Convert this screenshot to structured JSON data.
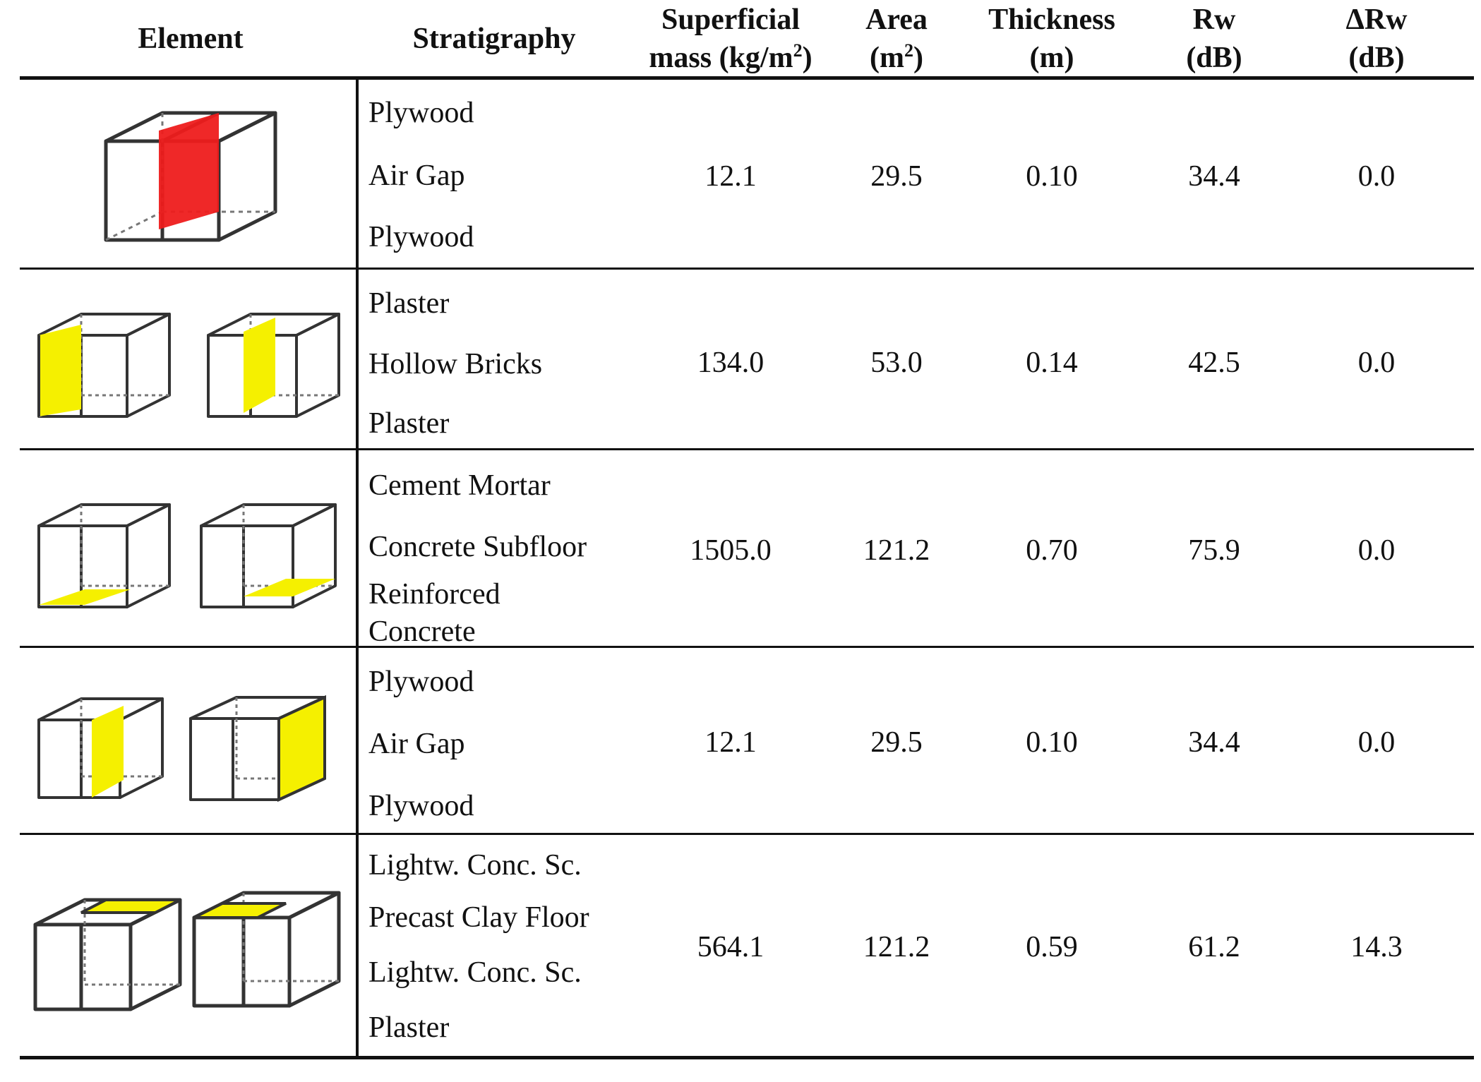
{
  "table": {
    "headers": {
      "element": "Element",
      "stratigraphy": "Stratigraphy",
      "mass_line1": "Superficial",
      "mass_line2": "mass (kg/m",
      "mass_sup": "2",
      "mass_close": ")",
      "area_line1": "Area",
      "area_line2": "(m",
      "area_sup": "2",
      "area_close": ")",
      "thickness_line1": "Thickness",
      "thickness_line2": "(m)",
      "rw_line1": "Rw",
      "rw_line2": "(dB)",
      "drw_line1": "ΔRw",
      "drw_line2": "(dB)"
    },
    "rows": [
      {
        "element_icon": "box-red-partition-icon",
        "layers": [
          "Plywood",
          "Air Gap",
          "Plywood"
        ],
        "mass": "12.1",
        "area": "29.5",
        "thickness": "0.10",
        "rw": "34.4",
        "drw": "0.0"
      },
      {
        "element_icon": "box-yellow-wall-icon",
        "layers": [
          "Plaster",
          "Hollow Bricks",
          "Plaster"
        ],
        "mass": "134.0",
        "area": "53.0",
        "thickness": "0.14",
        "rw": "42.5",
        "drw": "0.0"
      },
      {
        "element_icon": "box-yellow-floor-icon",
        "layers": [
          "Cement Mortar",
          "Concrete Subfloor",
          "Reinforced",
          "Concrete"
        ],
        "mass": "1505.0",
        "area": "121.2",
        "thickness": "0.70",
        "rw": "75.9",
        "drw": "0.0"
      },
      {
        "element_icon": "box-yellow-partition-icon",
        "layers": [
          "Plywood",
          "Air Gap",
          "Plywood"
        ],
        "mass": "12.1",
        "area": "29.5",
        "thickness": "0.10",
        "rw": "34.4",
        "drw": "0.0"
      },
      {
        "element_icon": "box-yellow-ceiling-icon",
        "layers": [
          "Lightw. Conc. Sc.",
          "Precast Clay Floor",
          "Lightw. Conc. Sc.",
          "Plaster"
        ],
        "mass": "564.1",
        "area": "121.2",
        "thickness": "0.59",
        "rw": "61.2",
        "drw": "14.3"
      }
    ]
  },
  "colors": {
    "highlight_red": "#ee1c1c",
    "highlight_yellow": "#f5f000",
    "line": "#111111"
  }
}
